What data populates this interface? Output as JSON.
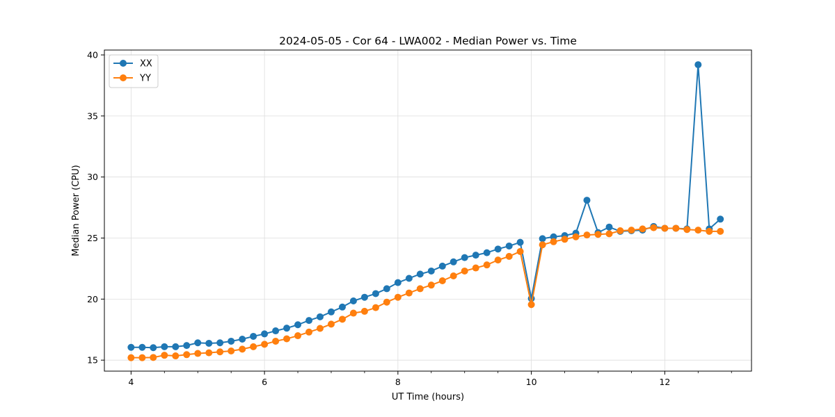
{
  "chart_data": {
    "type": "line",
    "title": "2024-05-05 - Cor 64 - LWA002 - Median Power vs. Time",
    "xlabel": "UT Time (hours)",
    "ylabel": "Median Power (CPU)",
    "xlim": [
      3.6,
      13.3
    ],
    "ylim": [
      14.1,
      40.4
    ],
    "xticks": [
      4,
      6,
      8,
      10,
      12
    ],
    "xtick_labels": [
      "4",
      "6",
      "8",
      "10",
      "12"
    ],
    "yticks": [
      15,
      20,
      25,
      30,
      35,
      40
    ],
    "ytick_labels": [
      "15",
      "20",
      "25",
      "30",
      "35",
      "40"
    ],
    "grid": true,
    "legend_position": "upper-left",
    "series": [
      {
        "name": "XX",
        "color": "#1f77b4",
        "points": [
          [
            4.0,
            16.05
          ],
          [
            4.167,
            16.05
          ],
          [
            4.333,
            16.02
          ],
          [
            4.5,
            16.1
          ],
          [
            4.667,
            16.1
          ],
          [
            4.833,
            16.2
          ],
          [
            5.0,
            16.42
          ],
          [
            5.167,
            16.38
          ],
          [
            5.333,
            16.42
          ],
          [
            5.5,
            16.55
          ],
          [
            5.667,
            16.72
          ],
          [
            5.833,
            16.95
          ],
          [
            6.0,
            17.15
          ],
          [
            6.167,
            17.4
          ],
          [
            6.333,
            17.62
          ],
          [
            6.5,
            17.9
          ],
          [
            6.667,
            18.25
          ],
          [
            6.833,
            18.55
          ],
          [
            7.0,
            18.95
          ],
          [
            7.167,
            19.35
          ],
          [
            7.333,
            19.85
          ],
          [
            7.5,
            20.15
          ],
          [
            7.667,
            20.45
          ],
          [
            7.833,
            20.85
          ],
          [
            8.0,
            21.35
          ],
          [
            8.167,
            21.7
          ],
          [
            8.333,
            22.05
          ],
          [
            8.5,
            22.3
          ],
          [
            8.667,
            22.7
          ],
          [
            8.833,
            23.05
          ],
          [
            9.0,
            23.4
          ],
          [
            9.167,
            23.6
          ],
          [
            9.333,
            23.8
          ],
          [
            9.5,
            24.1
          ],
          [
            9.667,
            24.35
          ],
          [
            9.833,
            24.65
          ],
          [
            10.0,
            20.05
          ],
          [
            10.167,
            24.95
          ],
          [
            10.333,
            25.1
          ],
          [
            10.5,
            25.2
          ],
          [
            10.667,
            25.4
          ],
          [
            10.833,
            28.1
          ],
          [
            11.0,
            25.45
          ],
          [
            11.167,
            25.9
          ],
          [
            11.333,
            25.55
          ],
          [
            11.5,
            25.6
          ],
          [
            11.667,
            25.65
          ],
          [
            11.833,
            25.95
          ],
          [
            12.0,
            25.8
          ],
          [
            12.167,
            25.8
          ],
          [
            12.333,
            25.75
          ],
          [
            12.5,
            39.2
          ],
          [
            12.667,
            25.75
          ],
          [
            12.833,
            26.55
          ]
        ]
      },
      {
        "name": "YY",
        "color": "#ff7f0e",
        "points": [
          [
            4.0,
            15.2
          ],
          [
            4.167,
            15.2
          ],
          [
            4.333,
            15.22
          ],
          [
            4.5,
            15.4
          ],
          [
            4.667,
            15.35
          ],
          [
            4.833,
            15.45
          ],
          [
            5.0,
            15.55
          ],
          [
            5.167,
            15.6
          ],
          [
            5.333,
            15.68
          ],
          [
            5.5,
            15.75
          ],
          [
            5.667,
            15.9
          ],
          [
            5.833,
            16.1
          ],
          [
            6.0,
            16.3
          ],
          [
            6.167,
            16.55
          ],
          [
            6.333,
            16.75
          ],
          [
            6.5,
            17.0
          ],
          [
            6.667,
            17.3
          ],
          [
            6.833,
            17.6
          ],
          [
            7.0,
            17.95
          ],
          [
            7.167,
            18.35
          ],
          [
            7.333,
            18.85
          ],
          [
            7.5,
            19.0
          ],
          [
            7.667,
            19.3
          ],
          [
            7.833,
            19.75
          ],
          [
            8.0,
            20.15
          ],
          [
            8.167,
            20.5
          ],
          [
            8.333,
            20.85
          ],
          [
            8.5,
            21.15
          ],
          [
            8.667,
            21.5
          ],
          [
            8.833,
            21.9
          ],
          [
            9.0,
            22.3
          ],
          [
            9.167,
            22.55
          ],
          [
            9.333,
            22.8
          ],
          [
            9.5,
            23.2
          ],
          [
            9.667,
            23.5
          ],
          [
            9.833,
            23.9
          ],
          [
            10.0,
            19.55
          ],
          [
            10.167,
            24.45
          ],
          [
            10.333,
            24.7
          ],
          [
            10.5,
            24.9
          ],
          [
            10.667,
            25.1
          ],
          [
            10.833,
            25.25
          ],
          [
            11.0,
            25.3
          ],
          [
            11.167,
            25.35
          ],
          [
            11.333,
            25.6
          ],
          [
            11.5,
            25.65
          ],
          [
            11.667,
            25.75
          ],
          [
            11.833,
            25.85
          ],
          [
            12.0,
            25.8
          ],
          [
            12.167,
            25.8
          ],
          [
            12.333,
            25.7
          ],
          [
            12.5,
            25.65
          ],
          [
            12.667,
            25.55
          ],
          [
            12.833,
            25.55
          ]
        ]
      }
    ]
  }
}
